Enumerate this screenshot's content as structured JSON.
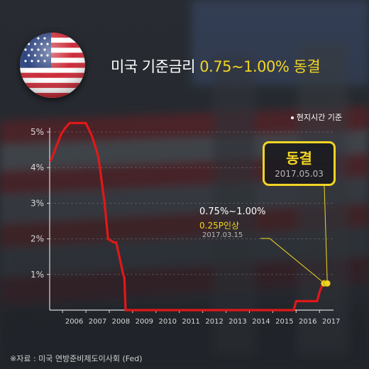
{
  "headline": {
    "prefix": "미국 기준금리 ",
    "highlight": "0.75~1.00% 동결"
  },
  "note": "현지시간 기준",
  "source": "※자료 : 미국 연방준비제도이사회 (Fed)",
  "colors": {
    "accent": "#f2d523",
    "line": "#e01818",
    "axis": "#d8d8d8"
  },
  "icons": {
    "flag": "us-flag-icon"
  },
  "callouts": {
    "freeze": {
      "title": "동결",
      "date": "2017.05.03"
    },
    "hike": {
      "range": "0.75%~1.00%",
      "step": "0.25P인상",
      "date": "2017.03.15"
    }
  },
  "chart_data": {
    "type": "line",
    "title": "",
    "xlabel": "",
    "ylabel": "",
    "ylim": [
      0,
      5.5
    ],
    "xlim": [
      2005.45,
      2017.6
    ],
    "yticks": [
      1,
      2,
      3,
      4,
      5
    ],
    "ytick_labels": [
      "1%",
      "2%",
      "3%",
      "4%",
      "5%"
    ],
    "xtick_labels": [
      "2006",
      "2007",
      "2008",
      "2009",
      "2010",
      "2011",
      "2012",
      "2013",
      "2014",
      "2015",
      "2016",
      "2017"
    ],
    "grid": true,
    "series": [
      {
        "x": [
          2005.5,
          2005.65,
          2005.8,
          2005.95,
          2006.1,
          2006.3,
          2006.5,
          2007.0,
          2007.25,
          2007.45,
          2007.55,
          2007.8,
          2007.95,
          2008.2,
          2008.3,
          2008.6,
          2008.65,
          2008.7,
          2008.95,
          2012.0,
          2015.9,
          2016.0,
          2016.9,
          2017.0,
          2017.15,
          2017.35
        ],
        "y": [
          4.2,
          4.45,
          4.7,
          4.95,
          5.1,
          5.25,
          5.25,
          5.25,
          4.9,
          4.5,
          4.25,
          3.0,
          2.0,
          1.9,
          1.9,
          1.0,
          0.9,
          0.0,
          0.0,
          0.0,
          0.0,
          0.25,
          0.25,
          0.5,
          0.75,
          0.75
        ]
      }
    ],
    "markers": [
      {
        "x": 2017.2,
        "y": 0.75,
        "label": "2017.03.15"
      },
      {
        "x": 2017.33,
        "y": 0.75,
        "label": "2017.05.03"
      }
    ]
  }
}
